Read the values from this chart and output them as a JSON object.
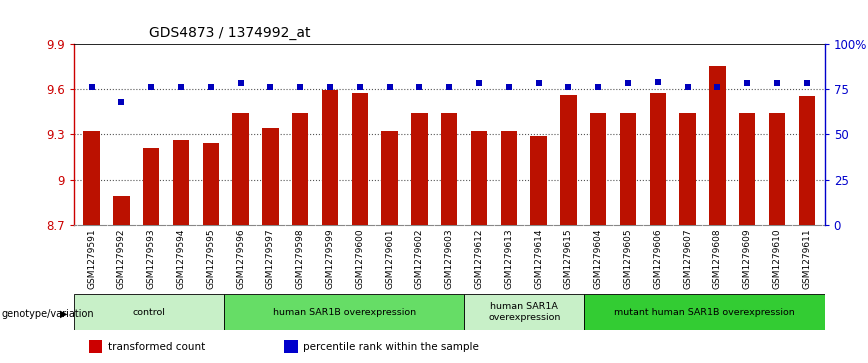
{
  "title": "GDS4873 / 1374992_at",
  "samples": [
    "GSM1279591",
    "GSM1279592",
    "GSM1279593",
    "GSM1279594",
    "GSM1279595",
    "GSM1279596",
    "GSM1279597",
    "GSM1279598",
    "GSM1279599",
    "GSM1279600",
    "GSM1279601",
    "GSM1279602",
    "GSM1279603",
    "GSM1279612",
    "GSM1279613",
    "GSM1279614",
    "GSM1279615",
    "GSM1279604",
    "GSM1279605",
    "GSM1279606",
    "GSM1279607",
    "GSM1279608",
    "GSM1279609",
    "GSM1279610",
    "GSM1279611"
  ],
  "bar_values": [
    9.32,
    8.89,
    9.21,
    9.26,
    9.24,
    9.44,
    9.34,
    9.44,
    9.59,
    9.57,
    9.32,
    9.44,
    9.44,
    9.32,
    9.32,
    9.29,
    9.56,
    9.44,
    9.44,
    9.57,
    9.44,
    9.75,
    9.44,
    9.44,
    9.55
  ],
  "percentile_values": [
    76,
    68,
    76,
    76,
    76,
    78,
    76,
    76,
    76,
    76,
    76,
    76,
    76,
    78,
    76,
    78,
    76,
    76,
    78,
    79,
    76,
    76,
    78,
    78,
    78
  ],
  "groups": [
    {
      "label": "control",
      "start": 0,
      "end": 5,
      "color": "#c8f0c8"
    },
    {
      "label": "human SAR1B overexpression",
      "start": 5,
      "end": 13,
      "color": "#66dd66"
    },
    {
      "label": "human SAR1A\noverexpression",
      "start": 13,
      "end": 17,
      "color": "#c8f0c8"
    },
    {
      "label": "mutant human SAR1B overexpression",
      "start": 17,
      "end": 25,
      "color": "#33cc33"
    }
  ],
  "ylim_left": [
    8.7,
    9.9
  ],
  "ylim_right": [
    0,
    100
  ],
  "yticks_left": [
    8.7,
    9.0,
    9.3,
    9.6,
    9.9
  ],
  "ytick_labels_left": [
    "8.7",
    "9",
    "9.3",
    "9.6",
    "9.9"
  ],
  "yticks_right": [
    0,
    25,
    50,
    75,
    100
  ],
  "ytick_labels_right": [
    "0",
    "25",
    "50",
    "75",
    "100%"
  ],
  "bar_color": "#bb1100",
  "dot_color": "#0000bb",
  "grid_dotted_vals": [
    9.0,
    9.3,
    9.6
  ],
  "axis_label_color_left": "#cc0000",
  "axis_label_color_right": "#0000cc",
  "legend_items": [
    {
      "label": "transformed count",
      "color": "#cc0000"
    },
    {
      "label": "percentile rank within the sample",
      "color": "#0000cc"
    }
  ],
  "genotype_label": "genotype/variation",
  "bg_color": "#ffffff",
  "xtick_bg": "#d0d0d0"
}
